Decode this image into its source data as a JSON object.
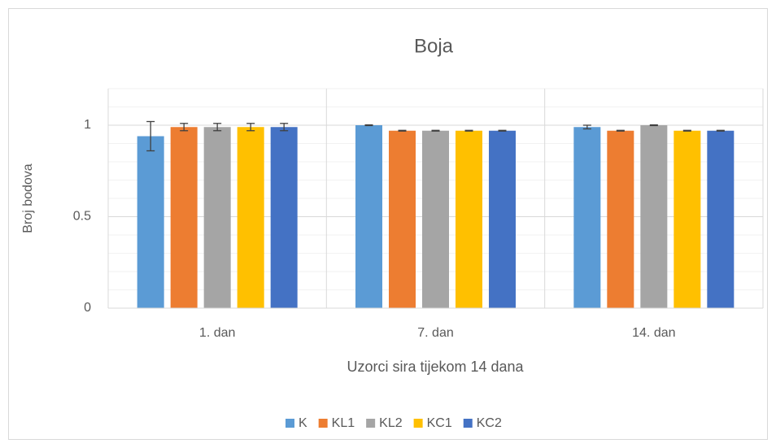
{
  "chart_data": {
    "type": "bar",
    "title": "Boja",
    "x_label": "Uzorci sira tijekom 14 dana",
    "y_label": "Broj bodova",
    "categories": [
      "1. dan",
      "7. dan",
      "14. dan"
    ],
    "series": [
      {
        "name": "K",
        "color": "#5b9bd5",
        "values": [
          0.94,
          1.0,
          0.99
        ],
        "errors": [
          0.08,
          0.002,
          0.01
        ]
      },
      {
        "name": "KL1",
        "color": "#ed7d31",
        "values": [
          0.99,
          0.97,
          0.97
        ],
        "errors": [
          0.02,
          0.002,
          0.002
        ]
      },
      {
        "name": "KL2",
        "color": "#a5a5a5",
        "values": [
          0.99,
          0.97,
          1.0
        ],
        "errors": [
          0.02,
          0.002,
          0.002
        ]
      },
      {
        "name": "KC1",
        "color": "#ffc000",
        "values": [
          0.99,
          0.97,
          0.97
        ],
        "errors": [
          0.02,
          0.002,
          0.002
        ]
      },
      {
        "name": "KC2",
        "color": "#4472c4",
        "values": [
          0.99,
          0.97,
          0.97
        ],
        "errors": [
          0.02,
          0.002,
          0.002
        ]
      }
    ],
    "ylim": [
      0,
      1.2
    ],
    "yticks": [
      0,
      0.5,
      1
    ],
    "minor_yticks": [
      0.1,
      0.2,
      0.3,
      0.4,
      0.6,
      0.7,
      0.8,
      0.9,
      1.1,
      1.2
    ],
    "grid": true,
    "legend": "bottom"
  }
}
